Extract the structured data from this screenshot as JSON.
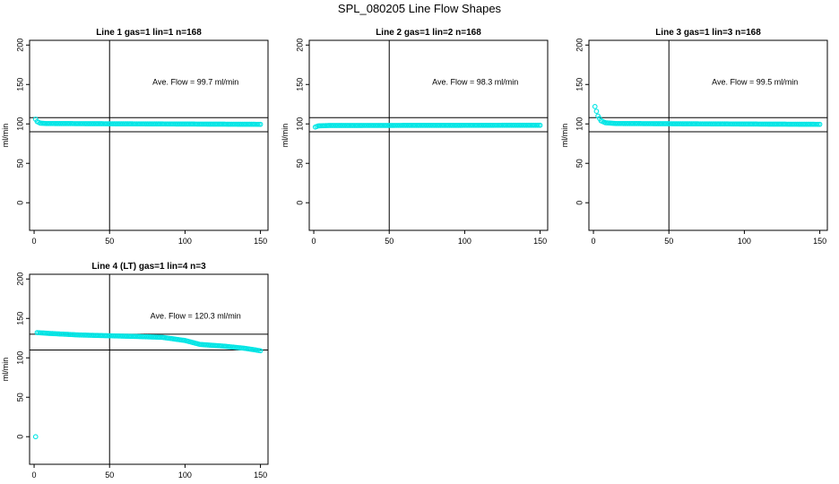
{
  "figure_title": "SPL_080205  Line Flow Shapes",
  "colors": {
    "points": "#00e5e5",
    "axes": "#000000",
    "ref_lines": "#000000"
  },
  "chart_data": [
    {
      "type": "scatter",
      "title": "Line 1 gas=1 lin=1 n=168",
      "ylabel": "ml/min",
      "xlim": [
        -3,
        155
      ],
      "ylim": [
        -35,
        206
      ],
      "xticks": [
        "0",
        "50",
        "100",
        "150"
      ],
      "xtick_values": [
        0,
        50,
        100,
        150
      ],
      "yticks": [
        "0",
        "50",
        "100",
        "150",
        "200"
      ],
      "ytick_values": [
        0,
        50,
        100,
        150,
        200
      ],
      "hlines": [
        108,
        90
      ],
      "vline": 50,
      "annotation": "Ave. Flow =  99.7  ml/min",
      "shape": {
        "x_start": 1,
        "x_end": 150,
        "segments": [
          [
            1,
            106
          ],
          [
            2,
            103
          ],
          [
            4,
            101
          ],
          [
            8,
            100.5
          ],
          [
            150,
            99.5
          ]
        ]
      }
    },
    {
      "type": "scatter",
      "title": "Line 2 gas=1 lin=2 n=168",
      "ylabel": "ml/min",
      "xlim": [
        -3,
        155
      ],
      "ylim": [
        -35,
        206
      ],
      "xticks": [
        "0",
        "50",
        "100",
        "150"
      ],
      "xtick_values": [
        0,
        50,
        100,
        150
      ],
      "yticks": [
        "0",
        "50",
        "100",
        "150",
        "200"
      ],
      "ytick_values": [
        0,
        50,
        100,
        150,
        200
      ],
      "hlines": [
        108,
        90
      ],
      "vline": 50,
      "annotation": "Ave. Flow =  98.3  ml/min",
      "shape": {
        "x_start": 1,
        "x_end": 150,
        "segments": [
          [
            1,
            96
          ],
          [
            3,
            97.5
          ],
          [
            10,
            98
          ],
          [
            150,
            98.3
          ]
        ]
      }
    },
    {
      "type": "scatter",
      "title": "Line 3 gas=1 lin=3 n=168",
      "ylabel": "ml/min",
      "xlim": [
        -3,
        155
      ],
      "ylim": [
        -35,
        206
      ],
      "xticks": [
        "0",
        "50",
        "100",
        "150"
      ],
      "xtick_values": [
        0,
        50,
        100,
        150
      ],
      "yticks": [
        "0",
        "50",
        "100",
        "150",
        "200"
      ],
      "ytick_values": [
        0,
        50,
        100,
        150,
        200
      ],
      "hlines": [
        108,
        90
      ],
      "vline": 50,
      "annotation": "Ave. Flow =  99.5  ml/min",
      "shape": {
        "x_start": 1,
        "x_end": 150,
        "segments": [
          [
            1,
            122
          ],
          [
            2,
            116
          ],
          [
            3,
            110
          ],
          [
            5,
            104
          ],
          [
            8,
            101.5
          ],
          [
            15,
            100.5
          ],
          [
            150,
            99.5
          ]
        ]
      }
    },
    {
      "type": "scatter",
      "title": "Line 4 (LT) gas=1 lin=4 n=3",
      "ylabel": "ml/min",
      "xlim": [
        -3,
        155
      ],
      "ylim": [
        -35,
        206
      ],
      "xticks": [
        "0",
        "50",
        "100",
        "150"
      ],
      "xtick_values": [
        0,
        50,
        100,
        150
      ],
      "yticks": [
        "0",
        "50",
        "100",
        "150",
        "200"
      ],
      "ytick_values": [
        0,
        50,
        100,
        150,
        200
      ],
      "hlines": [
        130,
        110
      ],
      "vline": 50,
      "annotation": "Ave. Flow =  120.3  ml/min",
      "outliers": [
        [
          1,
          0
        ]
      ],
      "shape": {
        "x_start": 2,
        "x_end": 150,
        "segments": [
          [
            2,
            132
          ],
          [
            10,
            131
          ],
          [
            30,
            129
          ],
          [
            50,
            128
          ],
          [
            70,
            127
          ],
          [
            85,
            126
          ],
          [
            100,
            122
          ],
          [
            110,
            117
          ],
          [
            125,
            115
          ],
          [
            140,
            112
          ],
          [
            150,
            109
          ]
        ]
      }
    }
  ]
}
